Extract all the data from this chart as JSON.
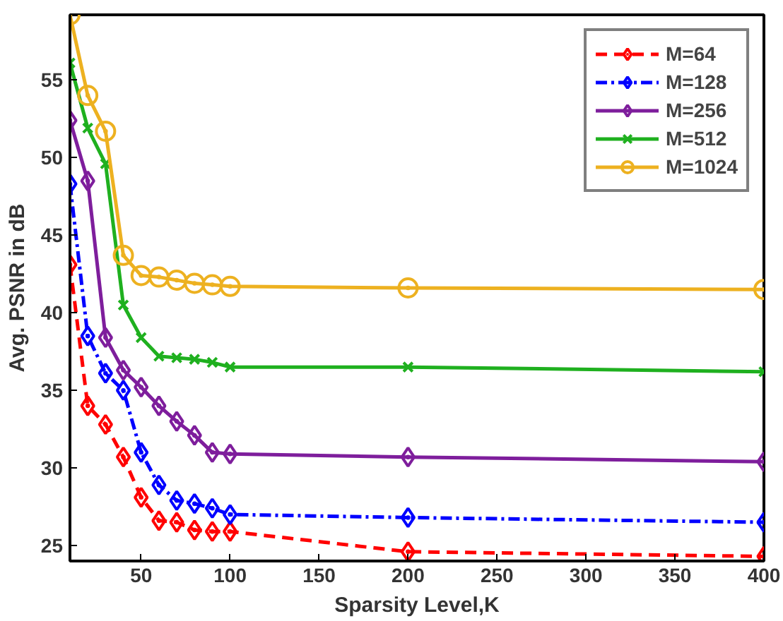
{
  "chart_data": {
    "type": "line",
    "xlabel": "Sparsity Level,K",
    "ylabel": "Avg. PSNR in dB",
    "x": [
      10,
      20,
      30,
      40,
      50,
      60,
      70,
      80,
      90,
      100,
      200,
      400
    ],
    "xlim": [
      10,
      400
    ],
    "xticks": [
      50,
      100,
      150,
      200,
      250,
      300,
      350,
      400
    ],
    "ylim": [
      24,
      59.2
    ],
    "yticks": [
      25,
      30,
      35,
      40,
      45,
      50,
      55
    ],
    "grid": false,
    "legend": "top right",
    "series": [
      {
        "name": "M=64",
        "color": "#ff0000",
        "line_style": "dashed",
        "marker": "diamond",
        "values": [
          43.1,
          34.0,
          32.8,
          30.7,
          28.1,
          26.6,
          26.5,
          26.0,
          25.9,
          25.9,
          24.6,
          24.3
        ]
      },
      {
        "name": "M=128",
        "color": "#0000ff",
        "line_style": "dashdot",
        "marker": "diamond",
        "values": [
          48.3,
          38.5,
          36.1,
          35.0,
          31.0,
          28.9,
          27.9,
          27.7,
          27.4,
          27.0,
          26.8,
          26.5
        ]
      },
      {
        "name": "M=256",
        "color": "#7e1e9c",
        "line_style": "solid",
        "marker": "diamond",
        "values": [
          52.4,
          48.5,
          38.4,
          36.3,
          35.2,
          34.0,
          33.0,
          32.1,
          31.0,
          30.9,
          30.7,
          30.4
        ]
      },
      {
        "name": "M=512",
        "color": "#1fb01f",
        "line_style": "solid",
        "marker": "cross",
        "values": [
          56.1,
          51.9,
          49.6,
          40.5,
          38.4,
          37.2,
          37.1,
          37.0,
          36.8,
          36.5,
          36.5,
          36.2
        ]
      },
      {
        "name": "M=1024",
        "color": "#edb120",
        "line_style": "solid",
        "marker": "circle",
        "values": [
          59.2,
          54.0,
          51.7,
          43.7,
          42.4,
          42.3,
          42.1,
          41.9,
          41.8,
          41.7,
          41.6,
          41.5
        ]
      }
    ]
  }
}
